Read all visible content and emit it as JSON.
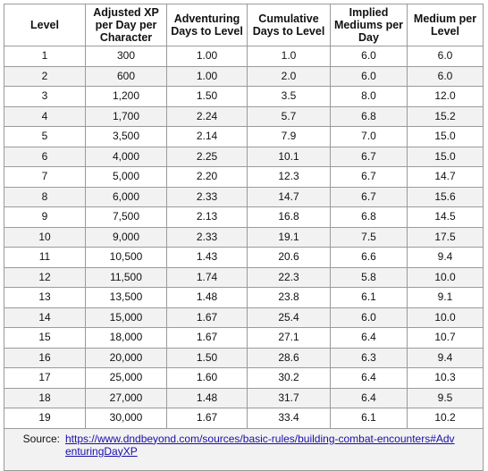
{
  "headers": [
    "Level",
    "Adjusted XP per Day per Character",
    "Adventuring Days to Level",
    "Cumulative Days to Level",
    "Implied Mediums per Day",
    "Medium per Level"
  ],
  "rows": [
    [
      "1",
      "300",
      "1.00",
      "1.0",
      "6.0",
      "6.0"
    ],
    [
      "2",
      "600",
      "1.00",
      "2.0",
      "6.0",
      "6.0"
    ],
    [
      "3",
      "1,200",
      "1.50",
      "3.5",
      "8.0",
      "12.0"
    ],
    [
      "4",
      "1,700",
      "2.24",
      "5.7",
      "6.8",
      "15.2"
    ],
    [
      "5",
      "3,500",
      "2.14",
      "7.9",
      "7.0",
      "15.0"
    ],
    [
      "6",
      "4,000",
      "2.25",
      "10.1",
      "6.7",
      "15.0"
    ],
    [
      "7",
      "5,000",
      "2.20",
      "12.3",
      "6.7",
      "14.7"
    ],
    [
      "8",
      "6,000",
      "2.33",
      "14.7",
      "6.7",
      "15.6"
    ],
    [
      "9",
      "7,500",
      "2.13",
      "16.8",
      "6.8",
      "14.5"
    ],
    [
      "10",
      "9,000",
      "2.33",
      "19.1",
      "7.5",
      "17.5"
    ],
    [
      "11",
      "10,500",
      "1.43",
      "20.6",
      "6.6",
      "9.4"
    ],
    [
      "12",
      "11,500",
      "1.74",
      "22.3",
      "5.8",
      "10.0"
    ],
    [
      "13",
      "13,500",
      "1.48",
      "23.8",
      "6.1",
      "9.1"
    ],
    [
      "14",
      "15,000",
      "1.67",
      "25.4",
      "6.0",
      "10.0"
    ],
    [
      "15",
      "18,000",
      "1.67",
      "27.1",
      "6.4",
      "10.7"
    ],
    [
      "16",
      "20,000",
      "1.50",
      "28.6",
      "6.3",
      "9.4"
    ],
    [
      "17",
      "25,000",
      "1.60",
      "30.2",
      "6.4",
      "10.3"
    ],
    [
      "18",
      "27,000",
      "1.48",
      "31.7",
      "6.4",
      "9.5"
    ],
    [
      "19",
      "30,000",
      "1.67",
      "33.4",
      "6.1",
      "10.2"
    ]
  ],
  "source": {
    "label": "Source:",
    "url": "https://www.dndbeyond.com/sources/basic-rules/building-combat-encounters#AdventuringDayXP"
  }
}
